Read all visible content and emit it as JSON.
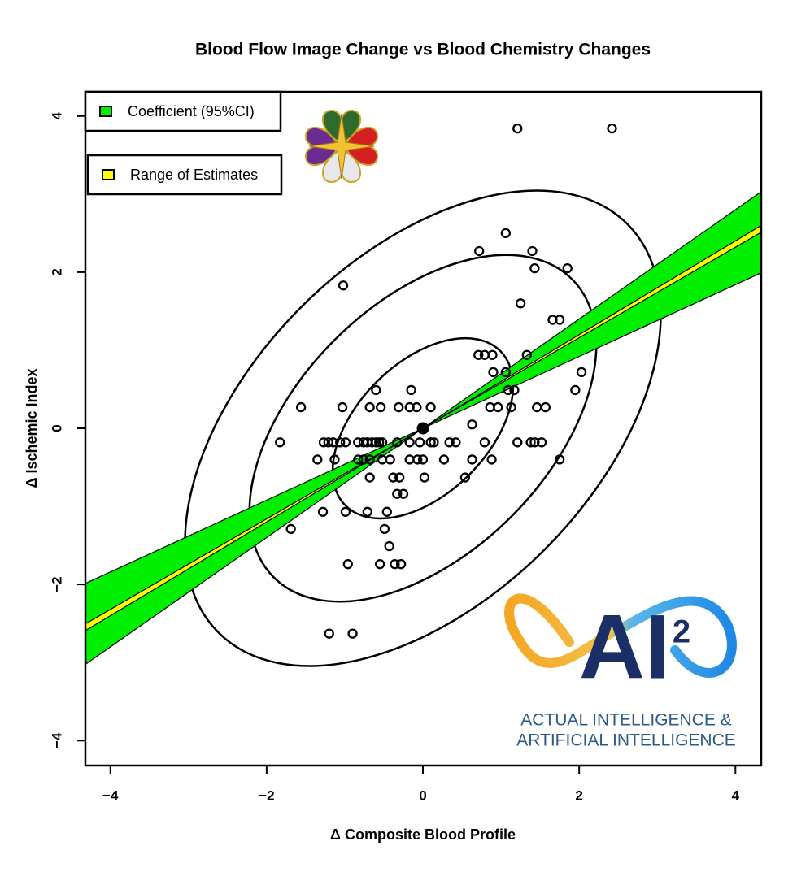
{
  "chart_data": {
    "type": "scatter",
    "title": "Blood Flow Image Change vs Blood Chemistry Changes",
    "x_label": "Δ Composite Blood Profile",
    "y_label": "Δ Ischemic Index",
    "xlim": [
      -4.32,
      4.33
    ],
    "ylim": [
      -4.32,
      4.31
    ],
    "xticks": [
      {
        "value": -4,
        "label": "−4"
      },
      {
        "value": -2,
        "label": "−2"
      },
      0,
      2,
      4
    ],
    "yticks": [
      {
        "value": -4,
        "label": "−4"
      },
      {
        "value": -2,
        "label": "−2"
      },
      0,
      2,
      4
    ],
    "legend_position": "top-left",
    "legend": [
      {
        "name": "Coefficient (95%CI)",
        "color": "#00ee00"
      },
      {
        "name": "Range of Estimates",
        "color": "#ffff00"
      }
    ],
    "fit": {
      "slope": 0.59,
      "ci": [
        0.46,
        0.7
      ],
      "range": [
        0.58,
        0.6
      ]
    },
    "mean": {
      "x": 0,
      "y": 0
    },
    "ellipses": [
      {
        "center": [
          0,
          0
        ],
        "radii": [
          3.7,
          2.2
        ],
        "angle": 45
      },
      {
        "center": [
          0,
          0
        ],
        "radii": [
          2.7,
          1.6
        ],
        "angle": 45
      },
      {
        "center": [
          0,
          0
        ],
        "radii": [
          1.4,
          0.84
        ],
        "angle": 45
      }
    ],
    "x": [
      1.21,
      2.42,
      1.06,
      0.72,
      1.4,
      1.43,
      1.85,
      -1.02,
      1.25,
      1.66,
      1.75,
      0.71,
      0.79,
      0.89,
      1.33,
      0.9,
      1.06,
      2.03,
      -0.6,
      -0.15,
      1.09,
      1.17,
      1.95,
      -1.56,
      -1.03,
      -0.68,
      -0.54,
      -0.31,
      -0.17,
      -0.08,
      0.1,
      0.86,
      0.96,
      1.13,
      1.46,
      1.57,
      0.63,
      -1.83,
      -1.27,
      -1.21,
      -1.15,
      -1.06,
      -0.99,
      -0.83,
      -0.76,
      -0.71,
      -0.65,
      -0.6,
      -0.56,
      -0.52,
      -0.33,
      -0.17,
      -0.04,
      0.1,
      0.14,
      0.34,
      0.42,
      0.79,
      1.21,
      1.38,
      1.43,
      1.52,
      -1.35,
      -1.13,
      -0.83,
      -0.76,
      -0.68,
      -0.52,
      -0.42,
      -0.17,
      -0.07,
      0,
      0.27,
      0.63,
      0.88,
      1.75,
      -0.68,
      -0.38,
      -0.3,
      0.02,
      0.54,
      -0.33,
      -0.25,
      -1.28,
      -0.99,
      -0.71,
      -0.46,
      -1.69,
      -0.49,
      -0.43,
      -0.96,
      -0.55,
      -0.36,
      -0.28,
      -1.2,
      -0.9
    ],
    "values": [
      3.84,
      3.84,
      2.5,
      2.27,
      2.27,
      2.05,
      2.05,
      1.83,
      1.6,
      1.39,
      1.39,
      0.94,
      0.94,
      0.94,
      0.94,
      0.72,
      0.72,
      0.72,
      0.49,
      0.49,
      0.49,
      0.49,
      0.49,
      0.27,
      0.27,
      0.27,
      0.27,
      0.27,
      0.27,
      0.27,
      0.27,
      0.27,
      0.27,
      0.27,
      0.27,
      0.27,
      0.05,
      -0.18,
      -0.18,
      -0.18,
      -0.18,
      -0.18,
      -0.18,
      -0.18,
      -0.18,
      -0.18,
      -0.18,
      -0.18,
      -0.18,
      -0.18,
      -0.18,
      -0.18,
      -0.18,
      -0.18,
      -0.18,
      -0.18,
      -0.18,
      -0.18,
      -0.18,
      -0.18,
      -0.18,
      -0.18,
      -0.4,
      -0.4,
      -0.4,
      -0.4,
      -0.4,
      -0.4,
      -0.4,
      -0.4,
      -0.4,
      -0.4,
      -0.4,
      -0.4,
      -0.4,
      -0.4,
      -0.63,
      -0.63,
      -0.63,
      -0.63,
      -0.63,
      -0.84,
      -0.84,
      -1.07,
      -1.07,
      -1.07,
      -1.07,
      -1.29,
      -1.29,
      -1.51,
      -1.74,
      -1.74,
      -1.74,
      -1.74,
      -2.63,
      -2.63
    ]
  },
  "logo": {
    "mark": "AI",
    "superscript": "2",
    "line1": "ACTUAL INTELLIGENCE &",
    "line2": "ARTIFICIAL INTELLIGENCE"
  }
}
